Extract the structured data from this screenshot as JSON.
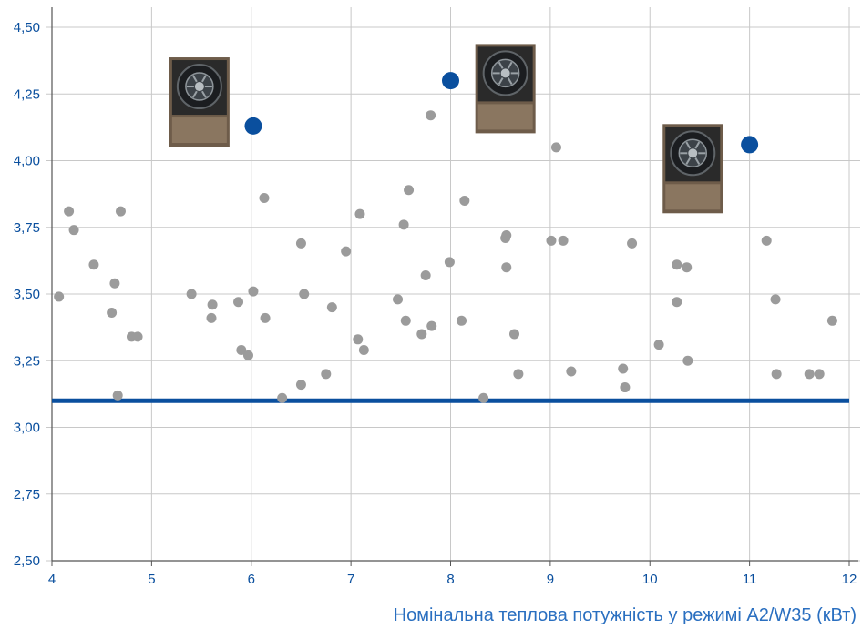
{
  "chart_data": {
    "type": "scatter",
    "title": "",
    "xlabel": "Номінальна теплова потужність у режимі A2/W35 (кВт)",
    "ylabel": "",
    "xlim": [
      4,
      12
    ],
    "ylim": [
      2.5,
      4.5
    ],
    "grid": true,
    "x_ticks": [
      "4",
      "5",
      "6",
      "7",
      "8",
      "9",
      "10",
      "11",
      "12"
    ],
    "y_ticks": [
      "2,50",
      "2,75",
      "3,00",
      "3,25",
      "3,50",
      "3,75",
      "4,00",
      "4,25",
      "4,50"
    ],
    "reference_line": {
      "y": 3.1,
      "color": "#0a4f9e"
    },
    "colors": {
      "grey": "#9b9b9b",
      "highlight": "#0a4f9e",
      "grid": "#c8c8c8"
    },
    "series": [
      {
        "values": [
          [
            4.07,
            3.49
          ],
          [
            4.17,
            3.81
          ],
          [
            4.22,
            3.74
          ],
          [
            4.42,
            3.61
          ],
          [
            4.6,
            3.43
          ],
          [
            4.63,
            3.54
          ],
          [
            4.66,
            3.12
          ],
          [
            4.69,
            3.81
          ],
          [
            4.8,
            3.34
          ],
          [
            4.86,
            3.34
          ],
          [
            5.4,
            3.5
          ],
          [
            5.6,
            3.41
          ],
          [
            5.61,
            3.46
          ],
          [
            5.87,
            3.47
          ],
          [
            5.9,
            3.29
          ],
          [
            5.97,
            3.27
          ],
          [
            6.02,
            3.51
          ],
          [
            6.13,
            3.86
          ],
          [
            6.14,
            3.41
          ],
          [
            6.31,
            3.11
          ],
          [
            6.5,
            3.69
          ],
          [
            6.5,
            3.16
          ],
          [
            6.53,
            3.5
          ],
          [
            6.75,
            3.2
          ],
          [
            6.81,
            3.45
          ],
          [
            6.95,
            3.66
          ],
          [
            7.07,
            3.33
          ],
          [
            7.09,
            3.8
          ],
          [
            7.13,
            3.29
          ],
          [
            7.47,
            3.48
          ],
          [
            7.53,
            3.76
          ],
          [
            7.55,
            3.4
          ],
          [
            7.58,
            3.89
          ],
          [
            7.71,
            3.35
          ],
          [
            7.75,
            3.57
          ],
          [
            7.8,
            4.17
          ],
          [
            7.81,
            3.38
          ],
          [
            7.99,
            3.62
          ],
          [
            8.11,
            3.4
          ],
          [
            8.14,
            3.85
          ],
          [
            8.33,
            3.11
          ],
          [
            8.55,
            3.71
          ],
          [
            8.56,
            3.72
          ],
          [
            8.56,
            3.6
          ],
          [
            8.64,
            3.35
          ],
          [
            8.68,
            3.2
          ],
          [
            9.01,
            3.7
          ],
          [
            9.06,
            4.05
          ],
          [
            9.13,
            3.7
          ],
          [
            9.21,
            3.21
          ],
          [
            9.73,
            3.22
          ],
          [
            9.75,
            3.15
          ],
          [
            9.82,
            3.69
          ],
          [
            10.09,
            3.31
          ],
          [
            10.27,
            3.61
          ],
          [
            10.27,
            3.47
          ],
          [
            10.37,
            3.6
          ],
          [
            10.38,
            3.25
          ],
          [
            11.17,
            3.7
          ],
          [
            11.26,
            3.48
          ],
          [
            11.27,
            3.2
          ],
          [
            11.6,
            3.2
          ],
          [
            11.7,
            3.2
          ],
          [
            11.83,
            3.4
          ]
        ]
      },
      {
        "values": [
          [
            6.02,
            4.13
          ],
          [
            8.0,
            4.3
          ],
          [
            11.0,
            4.06
          ]
        ]
      }
    ]
  },
  "images": [
    {
      "icon": "heat-pump-unit-icon",
      "x": 5.48,
      "y": 4.22
    },
    {
      "icon": "heat-pump-unit-icon",
      "x": 8.55,
      "y": 4.27
    },
    {
      "icon": "heat-pump-unit-icon",
      "x": 10.43,
      "y": 3.97
    }
  ]
}
